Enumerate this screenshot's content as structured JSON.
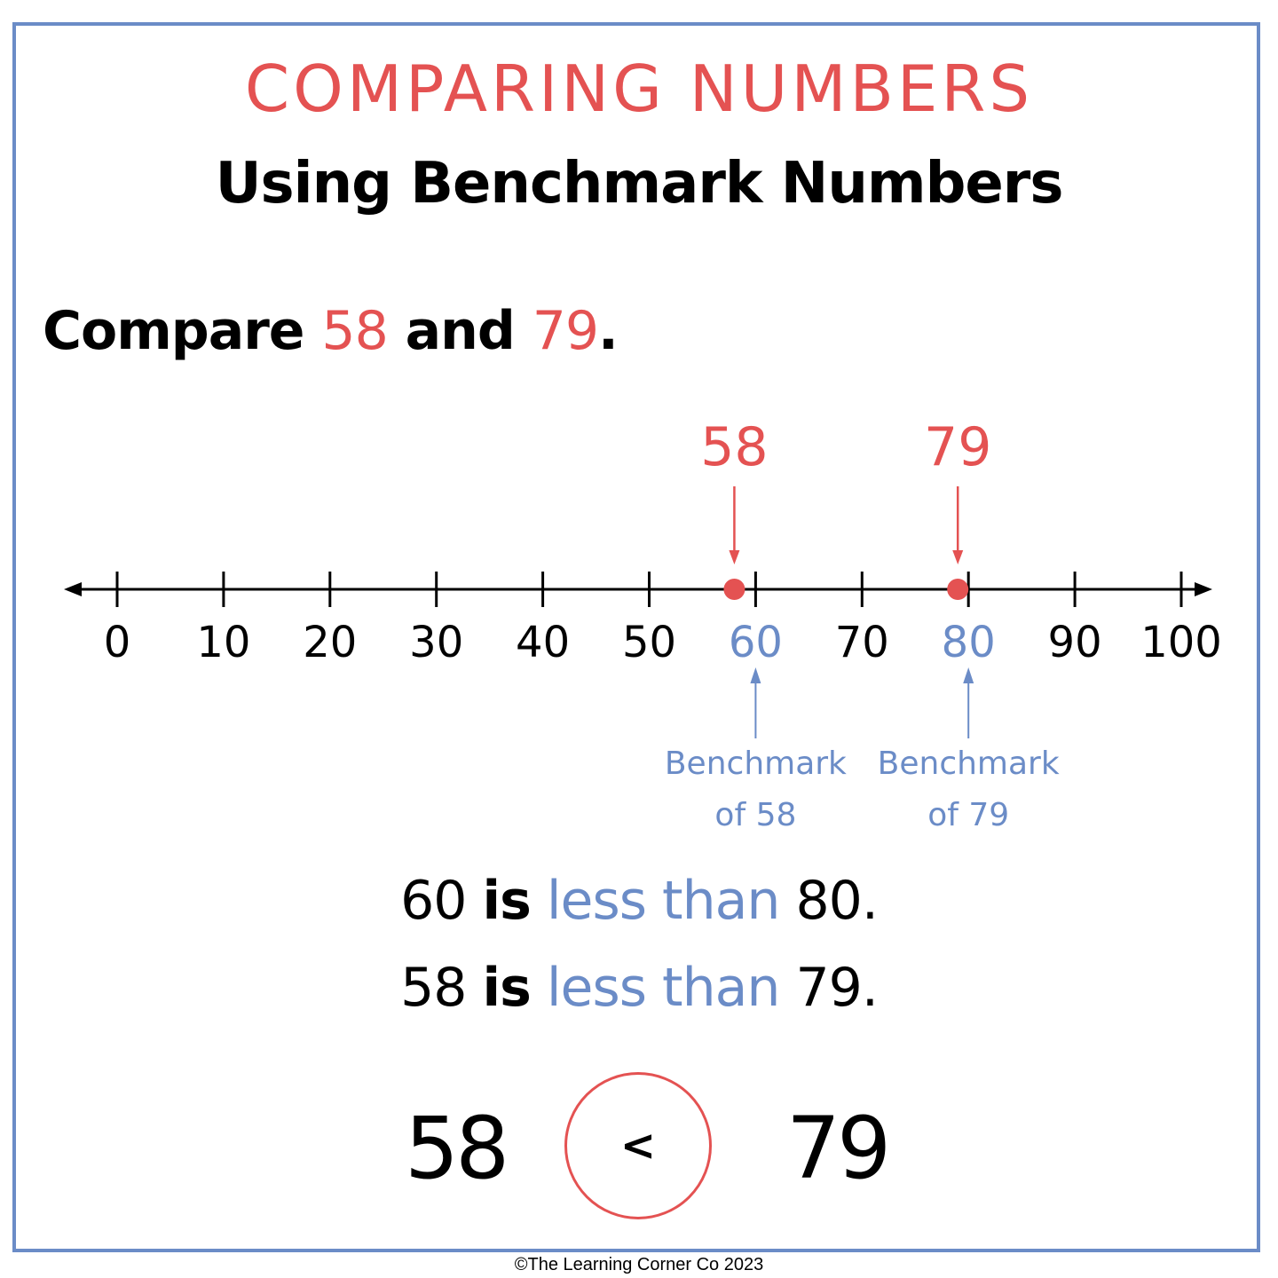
{
  "header": {
    "title": "COMPARING NUMBERS",
    "subtitle": "Using Benchmark Numbers"
  },
  "prompt": {
    "prefix": "Compare ",
    "a": "58",
    "middle": " and ",
    "b": "79",
    "suffix": "."
  },
  "number_line": {
    "min": 0,
    "max": 100,
    "ticks": [
      "0",
      "10",
      "20",
      "30",
      "40",
      "50",
      "60",
      "70",
      "80",
      "90",
      "100"
    ],
    "highlighted_ticks": [
      "60",
      "80"
    ],
    "points": [
      {
        "value": 58,
        "label": "58",
        "benchmark": 60,
        "benchmark_label_line1": "Benchmark",
        "benchmark_label_line2": "of 58"
      },
      {
        "value": 79,
        "label": "79",
        "benchmark": 80,
        "benchmark_label_line1": "Benchmark",
        "benchmark_label_line2": "of 79"
      }
    ],
    "colors": {
      "line": "#000000",
      "point": "#e45252",
      "benchmark": "#6b8cc7"
    }
  },
  "statements": [
    {
      "left": "60",
      "is": "is",
      "relation": "less than",
      "right": "80."
    },
    {
      "left": "58",
      "is": "is",
      "relation": "less than",
      "right": "79."
    }
  ],
  "comparison": {
    "left": "58",
    "symbol": "<",
    "right": "79"
  },
  "footer": {
    "copyright": "©The Learning Corner Co 2023"
  },
  "colors": {
    "accent_red": "#e45252",
    "accent_blue": "#6b8cc7",
    "border": "#6b8cc7"
  }
}
